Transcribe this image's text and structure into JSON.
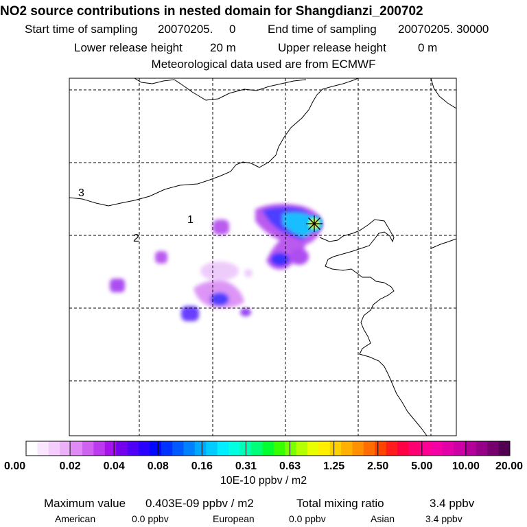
{
  "header": {
    "title": "NO2 source contributions in nested domain for Shangdianzi_200702",
    "start_label": "Start time of sampling",
    "start_value": "20070205.     0",
    "end_label": "End time of sampling",
    "end_value": "20070205. 30000",
    "lower_label": "Lower release height",
    "lower_value": "20 m",
    "upper_label": "Upper release height",
    "upper_value": "0 m",
    "met": "Meteorological data used are from ECMWF"
  },
  "map": {
    "region_labels": [
      "1",
      "2",
      "3"
    ],
    "station_icon": "asterisk-star-icon"
  },
  "legend": {
    "ticks": [
      "0.00",
      "0.02",
      "0.04",
      "0.08",
      "0.16",
      "0.31",
      "0.63",
      "1.25",
      "2.50",
      "5.00",
      "10.00",
      "20.00"
    ],
    "colors": [
      "#ffffff",
      "#fbe6ff",
      "#f4cdfc",
      "#ebb0f7",
      "#e08af5",
      "#cf63f0",
      "#bb3aee",
      "#a412ec",
      "#7400ee",
      "#4f00f5",
      "#2a00ff",
      "#0008ff",
      "#0032ff",
      "#005aff",
      "#0082ff",
      "#00a8ff",
      "#00ccff",
      "#00eeff",
      "#00ffe0",
      "#00ffb4",
      "#00ff78",
      "#00ff30",
      "#38ff00",
      "#78ff00",
      "#b4ff00",
      "#e8ff00",
      "#ffee00",
      "#ffd000",
      "#ffb000",
      "#ff9000",
      "#ff6c00",
      "#ff4400",
      "#ff1c1c",
      "#ff0044",
      "#ff0070",
      "#ff0094",
      "#f400a4",
      "#e200a8",
      "#cc00a4",
      "#b3009a",
      "#960088",
      "#75006e",
      "#520050"
    ],
    "unit": "10E-10 ppbv / m2"
  },
  "summary": {
    "max_label": "Maximum value",
    "max_value": "0.403E-09 ppbv / m2",
    "total_label": "Total mixing ratio",
    "total_value": "3.4 ppbv",
    "american_label": "American",
    "american_value": "0.0 ppbv",
    "european_label": "European",
    "european_value": "0.0 ppbv",
    "asian_label": "Asian",
    "asian_value": "3.4 ppbv"
  }
}
